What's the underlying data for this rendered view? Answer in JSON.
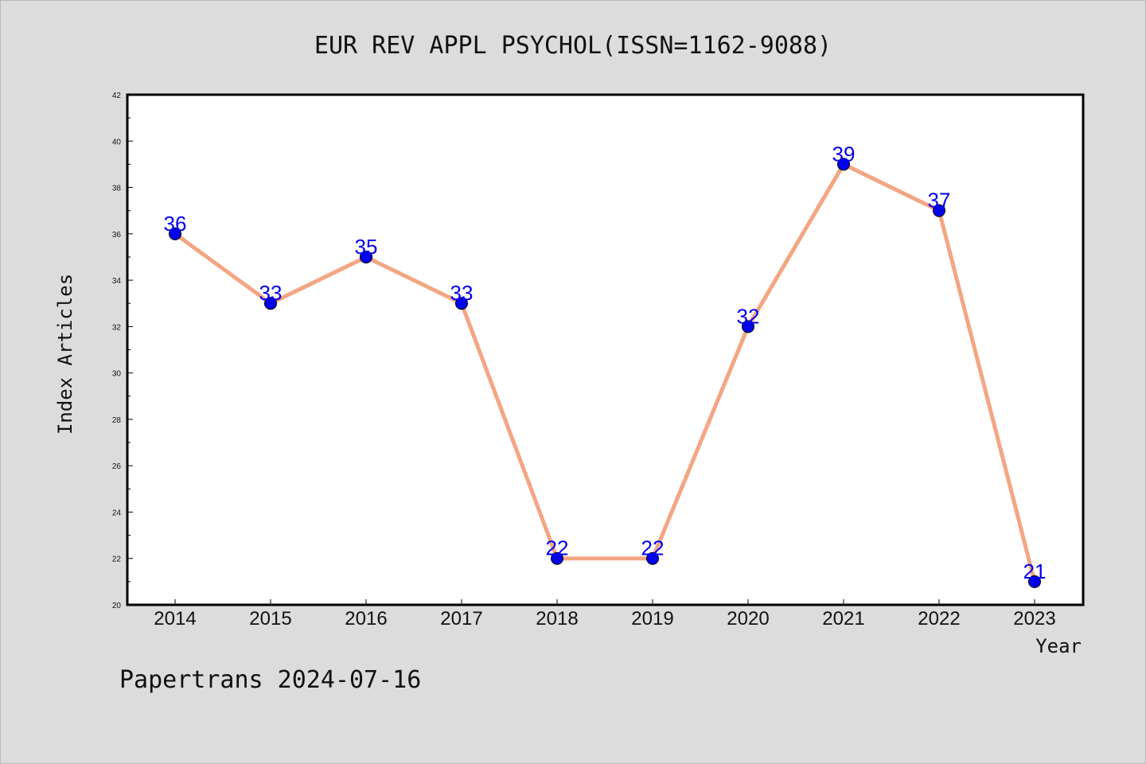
{
  "footer": "Papertrans 2024-07-16",
  "chart_data": {
    "type": "line",
    "title": "EUR REV APPL PSYCHOL(ISSN=1162-9088)",
    "xlabel": "Year",
    "ylabel": "Index Articles",
    "categories": [
      "2014",
      "2015",
      "2016",
      "2017",
      "2018",
      "2019",
      "2020",
      "2021",
      "2022",
      "2023"
    ],
    "series": [
      {
        "values": [
          36,
          33,
          35,
          33,
          22,
          22,
          32,
          39,
          37,
          21
        ]
      }
    ],
    "ylim": [
      20,
      42
    ],
    "yticks": [
      20,
      22,
      24,
      26,
      28,
      30,
      32,
      34,
      36,
      38,
      40,
      42
    ],
    "grid": false,
    "colors": {
      "line": "#f4a582",
      "marker": "#0000ee",
      "label": "#0000ee"
    }
  }
}
